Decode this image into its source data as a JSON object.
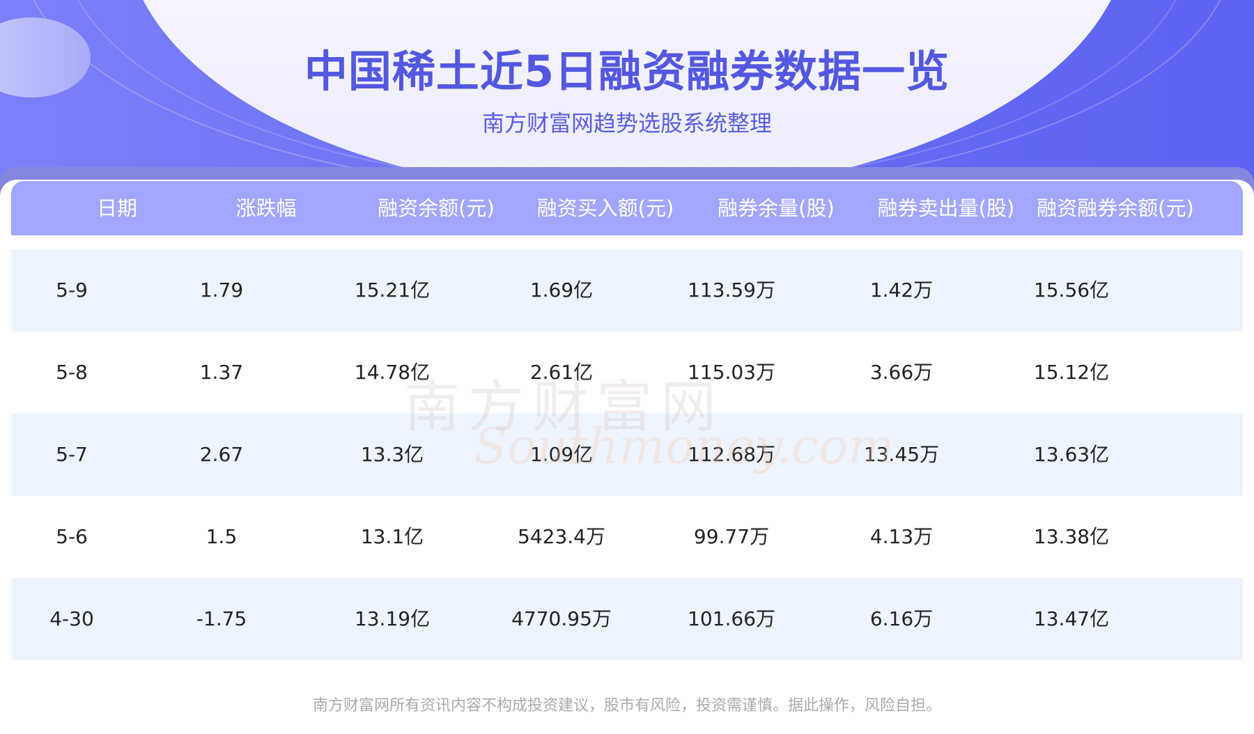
{
  "title": "中国稀土近5日融资融券数据一览",
  "subtitle": "南方财富网趋势选股系统整理",
  "watermark": {
    "cn": "南方财富网",
    "en": "Southmoney.com"
  },
  "columns": [
    "日期",
    "涨跌幅",
    "融资余额(元)",
    "融资买入额(元)",
    "融券余量(股)",
    "融券卖出量(股)",
    "融资融券余额(元)"
  ],
  "rows": [
    [
      "5-9",
      "1.79",
      "15.21亿",
      "1.69亿",
      "113.59万",
      "1.42万",
      "15.56亿"
    ],
    [
      "5-8",
      "1.37",
      "14.78亿",
      "2.61亿",
      "115.03万",
      "3.66万",
      "15.12亿"
    ],
    [
      "5-7",
      "2.67",
      "13.3亿",
      "1.09亿",
      "112.68万",
      "13.45万",
      "13.63亿"
    ],
    [
      "5-6",
      "1.5",
      "13.1亿",
      "5423.4万",
      "99.77万",
      "4.13万",
      "13.38亿"
    ],
    [
      "4-30",
      "-1.75",
      "13.19亿",
      "4770.95万",
      "101.66万",
      "6.16万",
      "13.47亿"
    ]
  ],
  "footer": "南方财富网所有资讯内容不构成投资建议，股市有风险，投资需谨慎。据此操作，风险自担。",
  "colors": {
    "accent": "#5457e0",
    "header": "#a2a6fd",
    "row_alt": "#eef4fe"
  }
}
